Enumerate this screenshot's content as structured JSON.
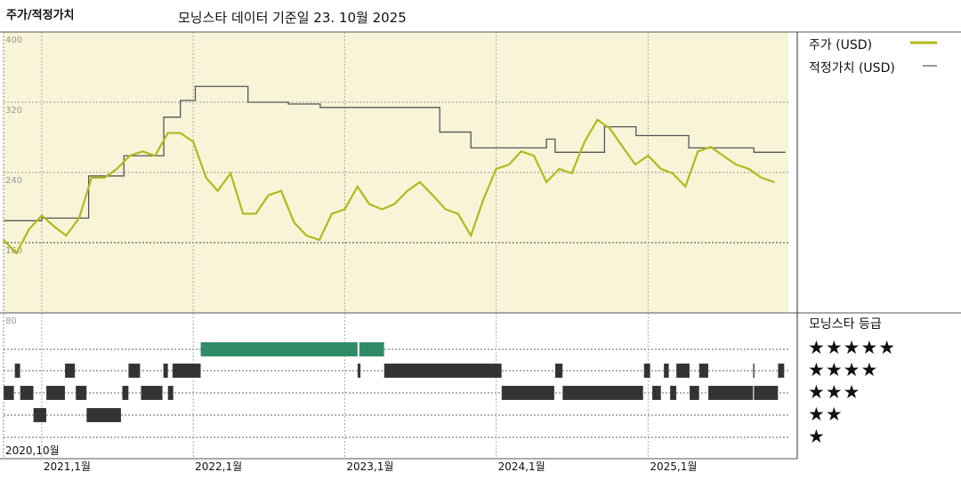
{
  "header": {
    "title": "주가/적정가치",
    "subtitle": "모닝스타 데이터 기준일 23. 10월 2025"
  },
  "colors": {
    "price": "#b3b81c",
    "fair_value": "#555555",
    "plot_background": "#f8f4d8",
    "five_star_bar": "#2f8a66",
    "rating_bar": "#333333"
  },
  "legend": {
    "price_label": "주가 (USD)",
    "fair_value_label": "적정가치 (USD)",
    "rating_title": "모닝스타 등급",
    "rating_levels": [
      "★★★★★",
      "★★★★",
      "★★★",
      "★★",
      "★"
    ]
  },
  "chart_data": [
    {
      "type": "line",
      "ylim": [
        80,
        400
      ],
      "yticks": [
        "400",
        "320",
        "240",
        "160",
        "80"
      ],
      "xlim": [
        "2020-10-01",
        "2025-12-05"
      ],
      "xticks": [
        {
          "date": "2020-10-01",
          "label": "2020,10월"
        },
        {
          "date": "2021-01-01",
          "label": "2021,1월"
        },
        {
          "date": "2022-01-01",
          "label": "2022,1월"
        },
        {
          "date": "2023-01-01",
          "label": "2023,1월"
        },
        {
          "date": "2024-01-01",
          "label": "2024,1월"
        },
        {
          "date": "2025-01-01",
          "label": "2025,1월"
        }
      ],
      "grid": true,
      "legend_position": "right",
      "series": [
        {
          "name": "주가 (USD)",
          "points": [
            [
              "2020-10-01",
              163
            ],
            [
              "2020-11-01",
              148
            ],
            [
              "2020-12-01",
              175
            ],
            [
              "2021-01-01",
              191
            ],
            [
              "2021-02-01",
              178
            ],
            [
              "2021-03-01",
              168
            ],
            [
              "2021-04-01",
              188
            ],
            [
              "2021-05-01",
              234
            ],
            [
              "2021-06-01",
              234
            ],
            [
              "2021-07-01",
              244
            ],
            [
              "2021-08-01",
              259
            ],
            [
              "2021-09-01",
              264
            ],
            [
              "2021-10-01",
              259
            ],
            [
              "2021-11-01",
              285
            ],
            [
              "2021-12-01",
              285
            ],
            [
              "2022-01-01",
              275
            ],
            [
              "2022-02-01",
              234
            ],
            [
              "2022-03-01",
              219
            ],
            [
              "2022-04-01",
              239
            ],
            [
              "2022-05-01",
              193
            ],
            [
              "2022-06-01",
              193
            ],
            [
              "2022-07-01",
              214
            ],
            [
              "2022-08-01",
              219
            ],
            [
              "2022-09-01",
              183
            ],
            [
              "2022-10-01",
              168
            ],
            [
              "2022-11-01",
              163
            ],
            [
              "2022-12-01",
              193
            ],
            [
              "2023-01-01",
              198
            ],
            [
              "2023-02-01",
              224
            ],
            [
              "2023-03-01",
              204
            ],
            [
              "2023-04-01",
              198
            ],
            [
              "2023-05-01",
              204
            ],
            [
              "2023-06-01",
              219
            ],
            [
              "2023-07-01",
              229
            ],
            [
              "2023-08-01",
              214
            ],
            [
              "2023-09-01",
              198
            ],
            [
              "2023-10-01",
              193
            ],
            [
              "2023-11-01",
              168
            ],
            [
              "2023-12-01",
              209
            ],
            [
              "2024-01-01",
              244
            ],
            [
              "2024-02-01",
              249
            ],
            [
              "2024-03-01",
              264
            ],
            [
              "2024-04-01",
              259
            ],
            [
              "2024-05-01",
              229
            ],
            [
              "2024-06-01",
              244
            ],
            [
              "2024-07-01",
              239
            ],
            [
              "2024-08-01",
              275
            ],
            [
              "2024-09-01",
              300
            ],
            [
              "2024-10-01",
              290
            ],
            [
              "2024-11-01",
              269
            ],
            [
              "2024-12-01",
              249
            ],
            [
              "2025-01-01",
              259
            ],
            [
              "2025-02-01",
              244
            ],
            [
              "2025-03-01",
              239
            ],
            [
              "2025-04-01",
              224
            ],
            [
              "2025-05-01",
              264
            ],
            [
              "2025-06-01",
              269
            ],
            [
              "2025-07-01",
              259
            ],
            [
              "2025-08-01",
              249
            ],
            [
              "2025-09-01",
              244
            ],
            [
              "2025-10-01",
              234
            ],
            [
              "2025-11-01",
              229
            ]
          ]
        },
        {
          "name": "적정가치 (USD)",
          "step": true,
          "points": [
            [
              "2020-10-01",
              185
            ],
            [
              "2021-01-01",
              188
            ],
            [
              "2021-04-24",
              236
            ],
            [
              "2021-07-18",
              259
            ],
            [
              "2021-10-22",
              303
            ],
            [
              "2021-12-01",
              322
            ],
            [
              "2022-01-06",
              338
            ],
            [
              "2022-05-13",
              320
            ],
            [
              "2022-08-18",
              318
            ],
            [
              "2022-11-03",
              314
            ],
            [
              "2023-08-18",
              286
            ],
            [
              "2023-11-01",
              268
            ],
            [
              "2024-05-01",
              278
            ],
            [
              "2024-05-22",
              263
            ],
            [
              "2024-09-18",
              292
            ],
            [
              "2024-12-03",
              282
            ],
            [
              "2025-04-09",
              268
            ],
            [
              "2025-09-13",
              263
            ],
            [
              "2025-11-28",
              263
            ]
          ]
        }
      ]
    },
    {
      "type": "timeline",
      "ylabel_tick": "80",
      "rows": [
        {
          "stars": 5,
          "ranges": [
            [
              "2022-01-19",
              "2023-02-01"
            ],
            [
              "2023-02-05",
              "2023-04-06"
            ]
          ]
        },
        {
          "stars": 4,
          "ranges": [
            [
              "2020-10-28",
              "2020-11-10"
            ],
            [
              "2021-02-26",
              "2021-03-22"
            ],
            [
              "2021-07-29",
              "2021-08-26"
            ],
            [
              "2021-10-21",
              "2021-11-01"
            ],
            [
              "2021-11-12",
              "2022-01-19"
            ],
            [
              "2023-02-01",
              "2023-02-08"
            ],
            [
              "2023-04-06",
              "2024-01-14"
            ],
            [
              "2024-05-22",
              "2024-06-09"
            ],
            [
              "2024-12-22",
              "2025-01-06"
            ],
            [
              "2025-02-08",
              "2025-02-20"
            ],
            [
              "2025-03-10",
              "2025-04-11"
            ],
            [
              "2025-05-04",
              "2025-05-26"
            ],
            [
              "2025-09-11",
              "2025-09-13"
            ],
            [
              "2025-11-10",
              "2025-11-25"
            ]
          ]
        },
        {
          "stars": 3,
          "ranges": [
            [
              "2020-10-01",
              "2020-10-26"
            ],
            [
              "2020-11-10",
              "2020-12-12"
            ],
            [
              "2021-01-12",
              "2021-02-26"
            ],
            [
              "2021-03-24",
              "2021-04-19"
            ],
            [
              "2021-07-14",
              "2021-07-29"
            ],
            [
              "2021-08-28",
              "2021-10-19"
            ],
            [
              "2021-11-01",
              "2021-11-14"
            ],
            [
              "2024-01-14",
              "2024-05-20"
            ],
            [
              "2024-06-09",
              "2024-12-20"
            ],
            [
              "2025-01-11",
              "2025-02-01"
            ],
            [
              "2025-02-23",
              "2025-03-10"
            ],
            [
              "2025-04-11",
              "2025-05-04"
            ],
            [
              "2025-05-26",
              "2025-09-11"
            ],
            [
              "2025-09-13",
              "2025-11-10"
            ]
          ]
        },
        {
          "stars": 2,
          "ranges": [
            [
              "2020-12-12",
              "2021-01-12"
            ],
            [
              "2021-04-19",
              "2021-07-11"
            ]
          ]
        },
        {
          "stars": 1,
          "ranges": []
        }
      ]
    }
  ]
}
